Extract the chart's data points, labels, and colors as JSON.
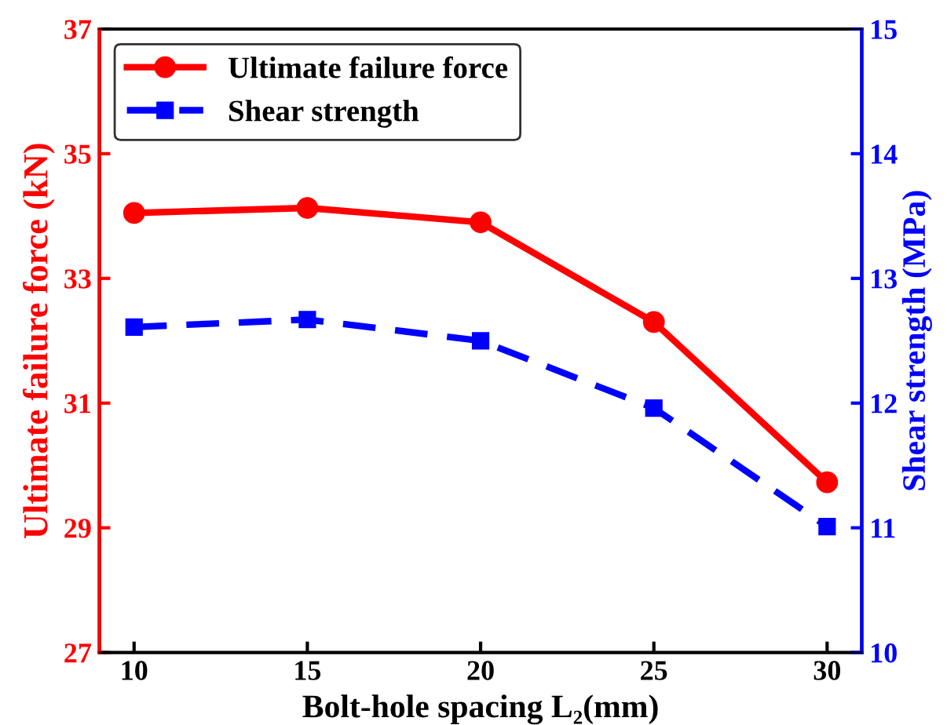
{
  "chart_data": {
    "type": "line",
    "xlabel": "Bolt-hole spacing L₂(mm)",
    "ylabel": "Ultimate failure force (kN)",
    "y2label": "Shear strength (MPa)",
    "x": [
      10,
      15,
      20,
      25,
      30
    ],
    "series": [
      {
        "name": "Ultimate failure force",
        "color": "#ff0000",
        "values": [
          34.05,
          34.13,
          33.9,
          32.3,
          29.73
        ],
        "marker": "circle",
        "line_style": "solid"
      },
      {
        "name": "Shear strength",
        "color": "#0000ff",
        "values": [
          12.61,
          12.67,
          12.5,
          11.96,
          11.01
        ],
        "axis": "y2",
        "marker": "square",
        "line_style": "dashed"
      }
    ],
    "xlim": [
      9,
      31
    ],
    "xticks": [
      10,
      15,
      20,
      25,
      30
    ],
    "ylim": [
      27,
      37
    ],
    "yticks": [
      27,
      29,
      31,
      33,
      35,
      37
    ],
    "y2lim": [
      10,
      15
    ],
    "y2ticks": [
      10,
      11,
      12,
      13,
      14,
      15
    ],
    "grid": false,
    "legend": "top left"
  }
}
